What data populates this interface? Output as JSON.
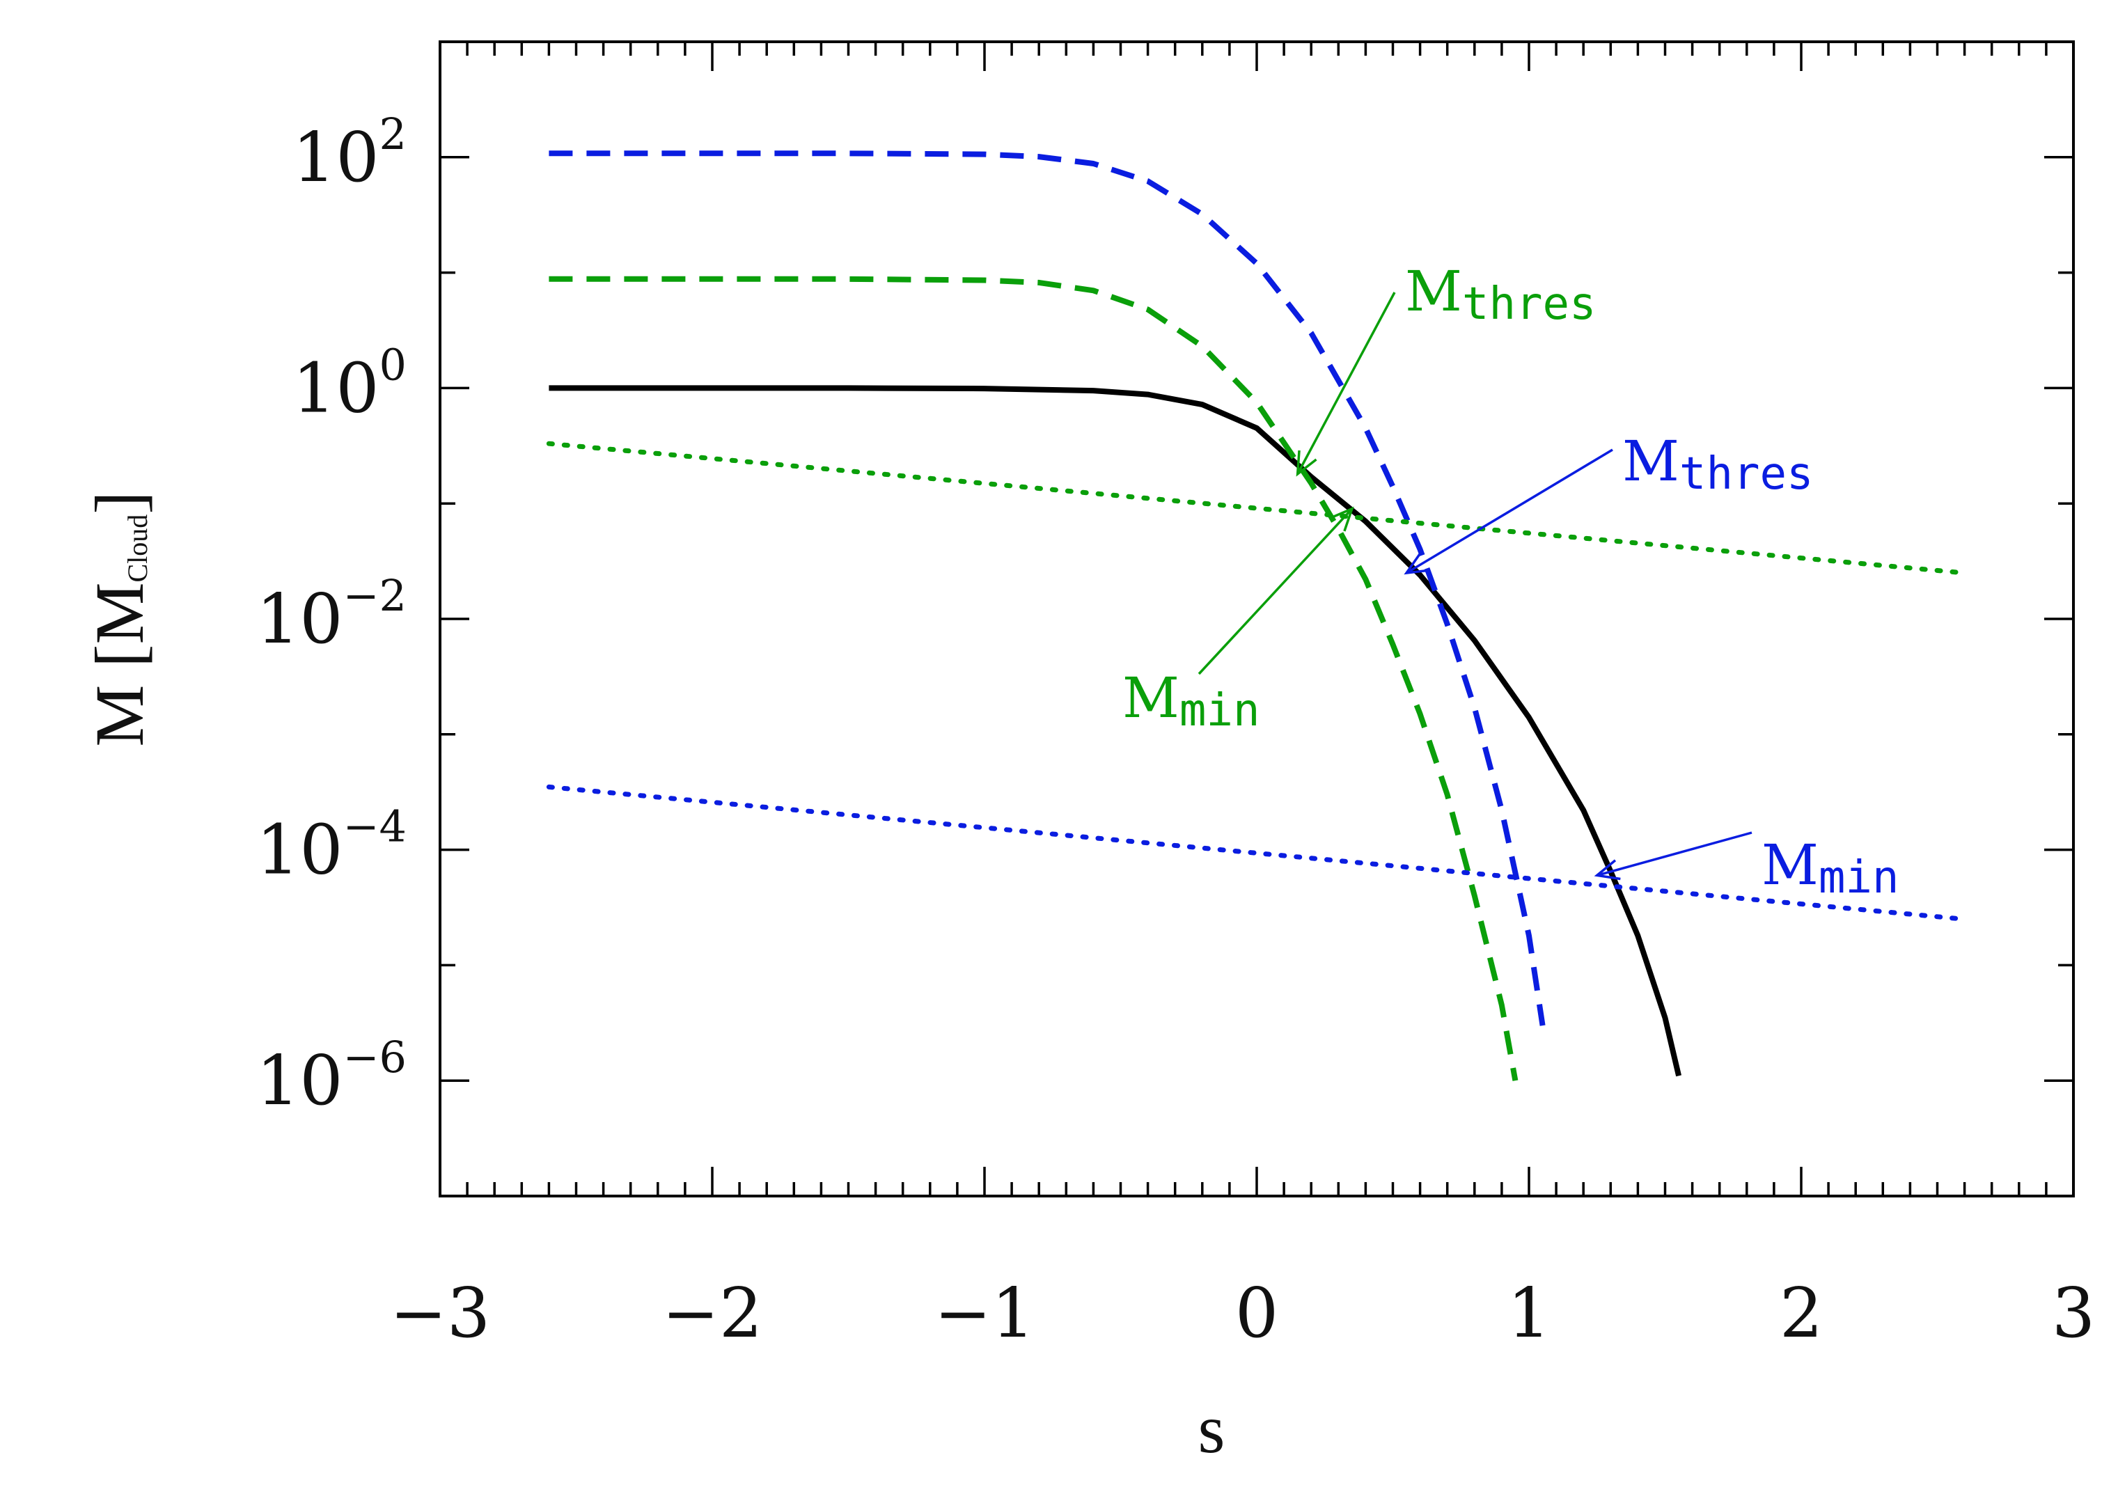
{
  "chart_data": {
    "type": "line",
    "xlabel": "s",
    "ylabel": {
      "main": "M [M",
      "subscript": "Cloud",
      "close": "]"
    },
    "x_scale": "linear",
    "y_scale": "log",
    "xlim": [
      -3,
      3
    ],
    "ylim": [
      1e-07,
      1000.0
    ],
    "x_ticks": [
      {
        "value": -3,
        "label": "−3"
      },
      {
        "value": -2,
        "label": "−2"
      },
      {
        "value": -1,
        "label": "−1"
      },
      {
        "value": 0,
        "label": "0"
      },
      {
        "value": 1,
        "label": "1"
      },
      {
        "value": 2,
        "label": "2"
      },
      {
        "value": 3,
        "label": "3"
      }
    ],
    "y_ticks": [
      {
        "value": 100,
        "base": "10",
        "exp": "2"
      },
      {
        "value": 1,
        "base": "10",
        "exp": "0"
      },
      {
        "value": 0.01,
        "base": "10",
        "exp": "−2"
      },
      {
        "value": 0.0001,
        "base": "10",
        "exp": "−4"
      },
      {
        "value": 1e-06,
        "base": "10",
        "exp": "−6"
      }
    ],
    "grid": false,
    "series": [
      {
        "color": "#000000",
        "style": "solid",
        "x": [
          -2.6,
          -2.0,
          -1.5,
          -1.0,
          -0.6,
          -0.4,
          -0.2,
          0.0,
          0.2,
          0.4,
          0.6,
          0.8,
          1.0,
          1.2,
          1.3,
          1.4,
          1.5,
          1.55
        ],
        "y": [
          1.0,
          1.0,
          1.0,
          0.99,
          0.95,
          0.88,
          0.72,
          0.45,
          0.17,
          0.07,
          0.024,
          0.0065,
          0.0014,
          0.00022,
          6.5e-05,
          1.8e-05,
          3.5e-06,
          1.1e-06
        ]
      },
      {
        "color": "#0a9f0a",
        "style": "dashed",
        "x": [
          -2.6,
          -2.0,
          -1.5,
          -1.0,
          -0.8,
          -0.6,
          -0.4,
          -0.2,
          0.0,
          0.2,
          0.3,
          0.4,
          0.5,
          0.6,
          0.7,
          0.8,
          0.9,
          0.95
        ],
        "y": [
          8.8,
          8.8,
          8.8,
          8.6,
          8.2,
          7.0,
          4.8,
          2.3,
          0.75,
          0.15,
          0.06,
          0.022,
          0.006,
          0.0015,
          0.0003,
          4e-05,
          4.5e-06,
          1e-06
        ]
      },
      {
        "color": "#0a1de0",
        "style": "dashed",
        "x": [
          -2.6,
          -2.0,
          -1.5,
          -1.0,
          -0.8,
          -0.6,
          -0.4,
          -0.2,
          0.0,
          0.2,
          0.4,
          0.5,
          0.6,
          0.7,
          0.8,
          0.9,
          1.0,
          1.05
        ],
        "y": [
          108,
          108,
          108,
          106,
          101,
          88,
          62,
          32,
          12,
          3.0,
          0.45,
          0.14,
          0.04,
          0.009,
          0.0017,
          0.00022,
          1.8e-05,
          3e-06
        ]
      },
      {
        "color": "#0a9f0a",
        "style": "dotted",
        "x": [
          -2.6,
          2.6
        ],
        "y": [
          0.33,
          0.025
        ]
      },
      {
        "color": "#0a1de0",
        "style": "dotted",
        "x": [
          -2.6,
          2.6
        ],
        "y": [
          0.00035,
          2.5e-05
        ]
      }
    ],
    "annotations": [
      {
        "main": "M",
        "sub": "thres",
        "color": "#0a9f0a",
        "points_to": {
          "x": 0.15,
          "y": 0.18
        }
      },
      {
        "main": "M",
        "sub": "thres",
        "color": "#0a1de0",
        "points_to": {
          "x": 0.55,
          "y": 0.025
        }
      },
      {
        "main": "M",
        "sub": "min",
        "color": "#0a9f0a",
        "points_to": {
          "x": 0.35,
          "y": 0.09
        }
      },
      {
        "main": "M",
        "sub": "min",
        "color": "#0a1de0",
        "points_to": {
          "x": 1.25,
          "y": 6e-05
        }
      }
    ]
  }
}
